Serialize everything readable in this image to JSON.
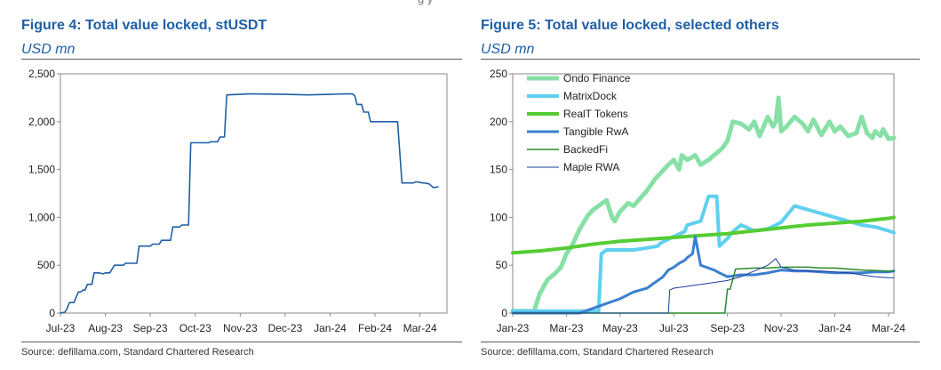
{
  "top_fragment": "g   y",
  "chart_data": [
    {
      "type": "line",
      "title": "Figure 4: Total value locked, stUSDT",
      "unit": "USD mn",
      "source": "Source: defillama.com, Standard Chartered Research",
      "xlabel": "",
      "ylabel": "USD mn",
      "ylim": [
        0,
        2500
      ],
      "yticks": [
        0,
        500,
        1000,
        1500,
        2000,
        2500
      ],
      "ytick_labels": [
        "0",
        "500",
        "1,000",
        "1,500",
        "2,000",
        "2,500"
      ],
      "xlim": [
        0,
        8.6
      ],
      "xticks": [
        0,
        1,
        2,
        3,
        4,
        5,
        6,
        7,
        8
      ],
      "xtick_labels": [
        "Jul-23",
        "Aug-23",
        "Sep-23",
        "Oct-23",
        "Nov-23",
        "Dec-23",
        "Jan-24",
        "Feb-24",
        "Mar-24"
      ],
      "series": [
        {
          "name": "stUSDT",
          "color": "#1f5fa6",
          "x": [
            0.0,
            0.1,
            0.15,
            0.2,
            0.3,
            0.4,
            0.45,
            0.5,
            0.55,
            0.6,
            0.7,
            0.75,
            0.85,
            0.95,
            1.0,
            1.1,
            1.2,
            1.4,
            1.45,
            1.7,
            1.75,
            1.8,
            2.0,
            2.05,
            2.2,
            2.25,
            2.45,
            2.5,
            2.65,
            2.7,
            2.85,
            2.9,
            3.3,
            3.35,
            3.5,
            3.55,
            3.65,
            3.7,
            4.2,
            4.3,
            5.0,
            5.5,
            6.0,
            6.3,
            6.5,
            6.55,
            6.6,
            6.7,
            6.75,
            6.85,
            6.9,
            7.5,
            7.6,
            7.85,
            7.9,
            7.95,
            8.05,
            8.1,
            8.2,
            8.3,
            8.4
          ],
          "y": [
            0,
            10,
            50,
            110,
            110,
            220,
            220,
            240,
            240,
            300,
            300,
            420,
            420,
            410,
            420,
            420,
            500,
            500,
            520,
            520,
            700,
            700,
            700,
            720,
            720,
            760,
            760,
            900,
            900,
            920,
            920,
            1780,
            1780,
            1790,
            1790,
            1840,
            1840,
            2280,
            2290,
            2290,
            2285,
            2280,
            2285,
            2290,
            2290,
            2270,
            2180,
            2180,
            2100,
            2100,
            2000,
            2000,
            1360,
            1360,
            1370,
            1370,
            1360,
            1360,
            1350,
            1310,
            1320
          ]
        }
      ]
    },
    {
      "type": "line",
      "title": "Figure 5: Total value locked, selected others",
      "unit": "USD mn",
      "source": "Source: defillama.com, Standard Chartered Research",
      "xlabel": "",
      "ylabel": "USD mn",
      "ylim": [
        0,
        250
      ],
      "yticks": [
        0,
        50,
        100,
        150,
        200,
        250
      ],
      "ytick_labels": [
        "0",
        "50",
        "100",
        "150",
        "200",
        "250"
      ],
      "xlim": [
        0,
        14.2
      ],
      "xticks": [
        0,
        2,
        4,
        6,
        8,
        10,
        12,
        14
      ],
      "xtick_labels": [
        "Jan-23",
        "Mar-23",
        "May-23",
        "Jul-23",
        "Sep-23",
        "Nov-23",
        "Jan-24",
        "Mar-24"
      ],
      "legend": [
        "Ondo Finance",
        "MatrixDock",
        "RealT Tokens",
        "Tangible RwA",
        "BackedFi",
        "Maple RWA"
      ],
      "legend_position": "top-left",
      "series": [
        {
          "name": "Ondo Finance",
          "color": "#88e0a7",
          "width": 5,
          "x": [
            0,
            0.8,
            1.0,
            1.3,
            1.6,
            1.8,
            2.0,
            2.2,
            2.5,
            2.8,
            3.0,
            3.2,
            3.5,
            3.7,
            3.8,
            4.0,
            4.3,
            4.5,
            5.0,
            5.3,
            5.5,
            5.8,
            6.0,
            6.2,
            6.3,
            6.5,
            6.8,
            7.0,
            7.3,
            7.5,
            7.8,
            8.0,
            8.2,
            8.5,
            8.8,
            9.0,
            9.2,
            9.5,
            9.7,
            9.8,
            9.9,
            10.0,
            10.2,
            10.5,
            10.8,
            11.0,
            11.2,
            11.5,
            11.8,
            12.0,
            12.2,
            12.5,
            12.8,
            13.0,
            13.2,
            13.4,
            13.5,
            13.7,
            13.8,
            14.0,
            14.2
          ],
          "y": [
            2,
            2,
            20,
            35,
            42,
            48,
            62,
            70,
            88,
            102,
            108,
            112,
            118,
            100,
            96,
            106,
            115,
            112,
            128,
            140,
            146,
            155,
            160,
            150,
            165,
            160,
            165,
            155,
            160,
            165,
            172,
            180,
            200,
            198,
            192,
            200,
            185,
            205,
            195,
            200,
            225,
            190,
            195,
            205,
            198,
            190,
            202,
            186,
            200,
            190,
            195,
            185,
            188,
            205,
            188,
            183,
            190,
            185,
            192,
            182,
            183
          ]
        },
        {
          "name": "MatrixDock",
          "color": "#5fd0f0",
          "width": 4,
          "x": [
            0,
            3.2,
            3.3,
            3.5,
            3.9,
            4.0,
            4.5,
            5.0,
            5.4,
            5.5,
            6.0,
            6.4,
            6.5,
            7.0,
            7.3,
            7.6,
            7.7,
            8.0,
            8.2,
            8.5,
            9.0,
            9.5,
            9.8,
            10.0,
            10.5,
            11.0,
            11.5,
            12.0,
            12.5,
            13.0,
            13.5,
            14.0,
            14.2
          ],
          "y": [
            2,
            2,
            62,
            66,
            66,
            66,
            66,
            68,
            70,
            73,
            80,
            85,
            92,
            96,
            122,
            122,
            70,
            78,
            85,
            92,
            86,
            88,
            92,
            95,
            112,
            108,
            104,
            100,
            96,
            92,
            90,
            86,
            84
          ]
        },
        {
          "name": "RealT Tokens",
          "color": "#55cc33",
          "width": 4,
          "x": [
            0,
            1,
            2,
            3,
            4,
            5,
            6,
            7,
            8,
            9,
            10,
            11,
            12,
            13,
            14,
            14.2
          ],
          "y": [
            63,
            65,
            68,
            72,
            75,
            77,
            79,
            81,
            83,
            86,
            89,
            92,
            94,
            96,
            99,
            100
          ]
        },
        {
          "name": "Tangible RwA",
          "color": "#3b7fd0",
          "width": 3,
          "x": [
            0,
            2.5,
            2.7,
            3.0,
            3.5,
            4.0,
            4.5,
            5.0,
            5.3,
            5.6,
            5.8,
            6.0,
            6.2,
            6.4,
            6.5,
            6.7,
            6.8,
            7.0,
            7.5,
            7.7,
            8.0,
            8.5,
            9.0,
            9.5,
            10.0,
            10.5,
            11.0,
            11.5,
            12.0,
            12.5,
            13.0,
            13.5,
            14.0,
            14.2
          ],
          "y": [
            0,
            0,
            2,
            5,
            10,
            15,
            22,
            26,
            32,
            38,
            45,
            48,
            52,
            55,
            58,
            62,
            80,
            50,
            45,
            42,
            38,
            40,
            40,
            42,
            45,
            44,
            44,
            43,
            42,
            42,
            42,
            43,
            43,
            44
          ]
        },
        {
          "name": "BackedFi",
          "color": "#2a8a2a",
          "width": 1.5,
          "x": [
            0,
            7.0,
            7.9,
            8.0,
            8.1,
            8.3,
            9.0,
            9.5,
            10.0,
            10.5,
            11.0,
            11.5,
            12.0,
            12.5,
            13.0,
            14.0,
            14.2
          ],
          "y": [
            0,
            0,
            0,
            25,
            25,
            46,
            47,
            47,
            48,
            48,
            48,
            47,
            47,
            46,
            45,
            44,
            44
          ]
        },
        {
          "name": "Maple RWA",
          "color": "#1e3f9a",
          "width": 1,
          "x": [
            0,
            5.8,
            5.85,
            6.0,
            6.5,
            7.0,
            7.5,
            8.0,
            8.5,
            9.0,
            9.5,
            9.8,
            10.0,
            10.5,
            11.0,
            11.5,
            12.0,
            12.5,
            13.0,
            13.5,
            14.0,
            14.2
          ],
          "y": [
            0,
            0,
            24,
            26,
            28,
            30,
            32,
            34,
            38,
            44,
            50,
            57,
            48,
            45,
            44,
            44,
            43,
            42,
            40,
            38,
            37,
            37
          ]
        }
      ]
    }
  ]
}
